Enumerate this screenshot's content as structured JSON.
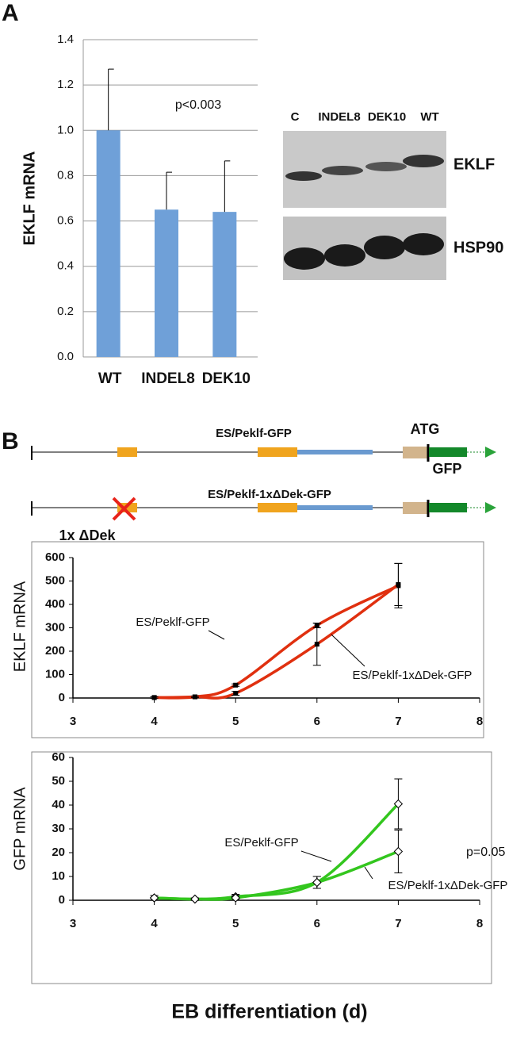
{
  "panel_labels": [
    "A",
    "B"
  ],
  "blot": {
    "lanes": [
      "C",
      "INDEL8",
      "DEK10",
      "WT"
    ],
    "rows": [
      "EKLF",
      "HSP90"
    ]
  },
  "diagram": {
    "constructs": [
      "ES/Peklf-GFP",
      "ES/Peklf-1xΔDek-GFP"
    ],
    "labels": [
      "ATG",
      "GFP"
    ],
    "deletion": "1x ΔDek"
  },
  "chart_data": [
    {
      "type": "bar",
      "y_label": "EKLF mRNA",
      "annotation": "p<0.003",
      "categories": [
        "WT",
        "INDEL8",
        "DEK10"
      ],
      "values": [
        1.0,
        0.65,
        0.64
      ],
      "errors": [
        0.27,
        0.165,
        0.225
      ],
      "color": "#6fa0d8",
      "ylim": [
        0,
        1.4
      ],
      "yticks": [
        {
          "value": 0,
          "label": "0.0"
        },
        {
          "value": 0.2,
          "label": "0.2"
        },
        {
          "value": 0.4,
          "label": "0.4"
        },
        {
          "value": 0.6,
          "label": "0.6"
        },
        {
          "value": 0.8,
          "label": "0.8"
        },
        {
          "value": 1.0,
          "label": "1.0"
        },
        {
          "value": 1.2,
          "label": "1.2"
        },
        {
          "value": 1.4,
          "label": "1.4"
        }
      ],
      "grid": true
    },
    {
      "type": "line",
      "y_label": "EKLF mRNA",
      "x": [
        4,
        4.5,
        5,
        6,
        7
      ],
      "marker": "square",
      "series": [
        {
          "name": "ES/Peklf-GFP",
          "color": "#e0300f",
          "values": [
            2,
            5,
            55,
            310,
            480
          ],
          "errors": [
            3,
            3,
            5,
            10,
            95
          ]
        },
        {
          "name": "ES/Peklf-1xΔDek-GFP",
          "color": "#e0300f",
          "values": [
            2,
            5,
            20,
            230,
            485
          ],
          "errors": [
            3,
            3,
            8,
            90,
            90
          ]
        }
      ],
      "xlim": [
        3,
        8
      ],
      "xticks": [
        3,
        4,
        5,
        6,
        7,
        8
      ],
      "ylim": [
        0,
        600
      ],
      "yticks": [
        0,
        100,
        200,
        300,
        400,
        500,
        600
      ]
    },
    {
      "type": "line",
      "y_label": "GFP mRNA",
      "x_label": "EB differentiation (d)",
      "annotation": "p=0.05",
      "x": [
        4,
        4.5,
        5,
        6,
        7
      ],
      "marker": "diamond",
      "series": [
        {
          "name": "ES/Peklf-GFP",
          "color": "#33c61e",
          "values": [
            1,
            0.5,
            1.5,
            7.5,
            40.5
          ],
          "errors": [
            1,
            0.5,
            1,
            2.5,
            10.5
          ]
        },
        {
          "name": "ES/Peklf-1xΔDek-GFP",
          "color": "#33c61e",
          "values": [
            1,
            0.5,
            1,
            7.5,
            20.5
          ],
          "errors": [
            1,
            0.5,
            1,
            2.5,
            9
          ]
        }
      ],
      "xlim": [
        3,
        8
      ],
      "xticks": [
        3,
        4,
        5,
        6,
        7,
        8
      ],
      "ylim": [
        0,
        60
      ],
      "yticks": [
        0,
        10,
        20,
        30,
        40,
        50,
        60
      ]
    }
  ]
}
